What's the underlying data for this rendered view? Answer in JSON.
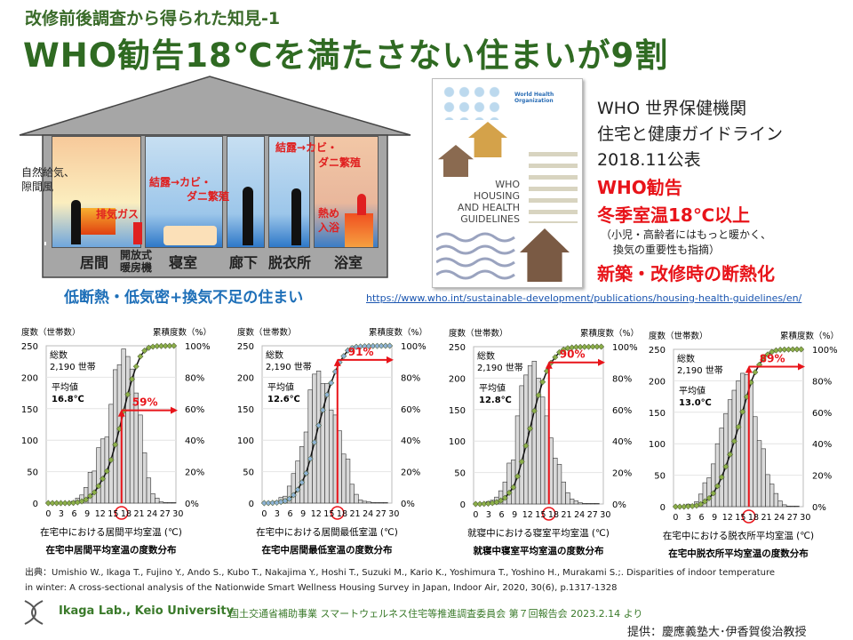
{
  "header": {
    "subtitle": "改修前後調査から得られた知見-1",
    "title": "WHO勧告18℃を満たさない住まいが9割"
  },
  "house": {
    "rooms": [
      "居間",
      "開放式",
      "暖房機",
      "寝室",
      "廊下",
      "脱衣所",
      "浴室"
    ],
    "notes": {
      "natural_air": "自然給気、",
      "draft": "隙間風",
      "exhaust": "排気ガス",
      "condensation1a": "結露→カビ・",
      "condensation1b": "ダニ繁殖",
      "condensation2a": "結露→カビ・",
      "condensation2b": "ダニ繁殖",
      "hot_bath_a": "熱め",
      "hot_bath_b": "入浴"
    },
    "caption": "低断熱・低気密+換気不足の住まい"
  },
  "who": {
    "cover": {
      "org": "World Health Organization",
      "title_lines": [
        "WHO",
        "HOUSING",
        "AND HEALTH",
        "GUIDELINES"
      ]
    },
    "lines": [
      "WHO 世界保健機関",
      "住宅と健康ガイドライン",
      "2018.11公表"
    ],
    "red_lines": [
      "WHO勧告",
      "冬季室温18℃以上"
    ],
    "note_lines": [
      "（小児・高齢者にはもっと暖かく、",
      "換気の重要性も指摘）"
    ],
    "conclusion": "新築・改修時の断熱化",
    "url": "https://www.who.int/sustainable-development/publications/housing-health-guidelines/en/"
  },
  "colors": {
    "title": "#2f6a22",
    "red": "#e8141a",
    "blue": "#1e6fb8",
    "bar": "#d9d9d9",
    "marker_green": "#8db04a",
    "marker_blue": "#8fb3d6"
  },
  "chart_data": [
    {
      "type": "bar",
      "title": "在宅中居間平均室温の度数分布",
      "xlabel": "在宅中における居間平均室温 (℃)",
      "ylabel": "度数（世帯数）",
      "y2label": "累積度数（%）",
      "ylim": [
        0,
        250
      ],
      "y2lim": [
        0,
        100
      ],
      "yticks": [
        "250",
        "200",
        "150",
        "100",
        "50",
        "0"
      ],
      "y2ticks": [
        "100%",
        "80%",
        "60%",
        "40%",
        "20%",
        "0%"
      ],
      "xticks": [
        "0",
        "3",
        "6",
        "9",
        "12",
        "15",
        "18",
        "21",
        "24",
        "27",
        "30"
      ],
      "total_label": "総数",
      "total": "2,190 世帯",
      "mean_label": "平均値",
      "mean": "16.8℃",
      "annotation": "59%",
      "marker": "green",
      "values": [
        0,
        0,
        0,
        0,
        0,
        0,
        3,
        8,
        13,
        25,
        49,
        51,
        88,
        102,
        105,
        157,
        212,
        220,
        245,
        233,
        213,
        175,
        140,
        80,
        40,
        15,
        8,
        2,
        1,
        1,
        1
      ]
    },
    {
      "type": "bar",
      "title": "在宅中居間最低室温の度数分布",
      "xlabel": "在宅中における居間最低室温 (℃)",
      "ylabel": "度数（世帯数）",
      "y2label": "累積度数（%）",
      "ylim": [
        0,
        250
      ],
      "y2lim": [
        0,
        100
      ],
      "yticks": [
        "250",
        "200",
        "150",
        "100",
        "50",
        "0"
      ],
      "y2ticks": [
        "100%",
        "80%",
        "60%",
        "40%",
        "20%",
        "0%"
      ],
      "xticks": [
        "0",
        "3",
        "6",
        "9",
        "12",
        "15",
        "18",
        "21",
        "24",
        "27",
        "30"
      ],
      "total_label": "総数",
      "total": "2,190 世帯",
      "mean_label": "平均値",
      "mean": "12.6℃",
      "annotation": "91%",
      "marker": "blue",
      "values": [
        0,
        1,
        2,
        3,
        9,
        11,
        27,
        47,
        67,
        90,
        113,
        180,
        205,
        210,
        190,
        190,
        148,
        140,
        115,
        78,
        70,
        30,
        14,
        5,
        3,
        2,
        1,
        1,
        1,
        1,
        0
      ]
    },
    {
      "type": "bar",
      "title": "就寝中寝室平均室温の度数分布",
      "xlabel": "就寝中における寝室平均室温 (℃)",
      "ylabel": "度数（世帯数）",
      "y2label": "累積度数（%）",
      "ylim": [
        0,
        250
      ],
      "y2lim": [
        0,
        100
      ],
      "yticks": [
        "250",
        "200",
        "150",
        "100",
        "50",
        "0"
      ],
      "y2ticks": [
        "100%",
        "80%",
        "60%",
        "40%",
        "20%",
        "0%"
      ],
      "xticks": [
        "0",
        "3",
        "6",
        "9",
        "12",
        "15",
        "18",
        "21",
        "24",
        "27",
        "30"
      ],
      "total_label": "総数",
      "total": "2,190 世帯",
      "mean_label": "平均値",
      "mean": "12.8℃",
      "annotation": "90%",
      "marker": "green",
      "values": [
        0,
        0,
        2,
        4,
        6,
        11,
        21,
        35,
        65,
        70,
        140,
        188,
        205,
        220,
        227,
        200,
        170,
        140,
        105,
        73,
        63,
        35,
        18,
        8,
        5,
        2,
        1,
        1,
        1,
        1,
        0
      ]
    },
    {
      "type": "bar",
      "title": "在宅中脱衣所平均室温の度数分布",
      "xlabel": "在宅中における脱衣所平均室温 (℃)",
      "ylabel": "度数（世帯数）",
      "y2label": "累積度数（%）",
      "ylim": [
        0,
        250
      ],
      "y2lim": [
        0,
        100
      ],
      "yticks": [
        "250",
        "200",
        "150",
        "100",
        "50",
        "0"
      ],
      "y2ticks": [
        "100%",
        "80%",
        "60%",
        "40%",
        "20%",
        "0%"
      ],
      "xticks": [
        "0",
        "3",
        "6",
        "9",
        "12",
        "15",
        "18",
        "21",
        "24",
        "27",
        "30"
      ],
      "total_label": "総数",
      "total": "2,190 世帯",
      "mean_label": "平均値",
      "mean": "13.0℃",
      "annotation": "89%",
      "marker": "green",
      "values": [
        0,
        0,
        0,
        4,
        3,
        8,
        20,
        38,
        46,
        68,
        100,
        125,
        148,
        170,
        185,
        200,
        212,
        210,
        200,
        143,
        105,
        92,
        51,
        36,
        21,
        9,
        3,
        1,
        1,
        1,
        0
      ]
    }
  ],
  "footer": {
    "citation_lines": [
      "出典：Umishio W., Ikaga T., Fujino Y., Ando S., Kubo T., Nakajima Y., Hoshi T., Suzuki M., Kario K., Yoshimura T., Yoshino H., Murakami S.;. Disparities of indoor temperature",
      "in winter: A cross-sectional analysis of the Nationwide Smart Wellness Housing Survey in Japan, Indoor Air, 2020, 30(6), p.1317-1328"
    ],
    "lab": "Ikaga Lab., Keio University",
    "meeting": "国土交通省補助事業 スマートウェルネス住宅等推進調査委員会 第７回報告会 2023.2.14 より",
    "credit": "提供：慶應義塾大･伊香賀俊治教授"
  }
}
